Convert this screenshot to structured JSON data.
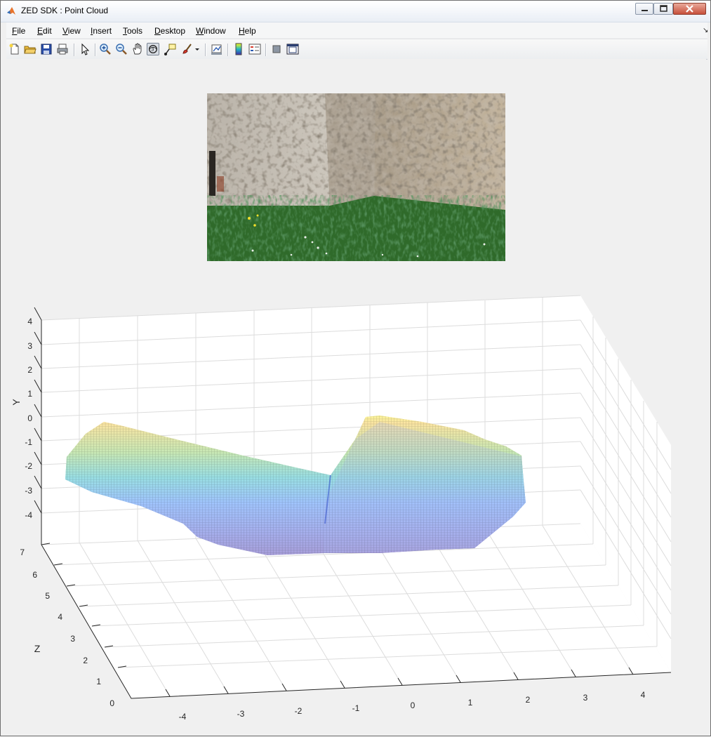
{
  "window": {
    "title": "ZED SDK : Point Cloud",
    "app_icon": "matlab-icon",
    "controls": [
      "minimize-icon",
      "maximize-icon",
      "close-icon"
    ]
  },
  "menubar": {
    "items": [
      {
        "key": "F",
        "rest": "ile"
      },
      {
        "key": "E",
        "rest": "dit"
      },
      {
        "key": "V",
        "rest": "iew"
      },
      {
        "key": "I",
        "rest": "nsert"
      },
      {
        "key": "T",
        "rest": "ools"
      },
      {
        "key": "D",
        "rest": "esktop"
      },
      {
        "key": "W",
        "rest": "indow"
      },
      {
        "key": "H",
        "rest": "elp"
      }
    ],
    "overflow_icon": "dock-arrow-icon"
  },
  "toolbar": {
    "tools": [
      "new-figure-icon",
      "open-file-icon",
      "save-icon",
      "print-icon",
      "edit-plot-icon",
      "zoom-in-icon",
      "zoom-out-icon",
      "pan-icon",
      "rotate-3d-icon",
      "data-cursor-icon",
      "brush-icon",
      "brush-dropdown-icon",
      "link-plot-icon",
      "insert-colorbar-icon",
      "insert-legend-icon",
      "hide-plot-tools-icon",
      "show-plot-tools-icon"
    ],
    "active_tool": "rotate-3d-icon"
  },
  "image": {
    "description_icon": "left-camera-image"
  },
  "axes": {
    "ylabel": "Y",
    "zlabel": "Z",
    "x_ticks": [
      "-4",
      "-3",
      "-2",
      "-1",
      "0",
      "1",
      "2",
      "3",
      "4"
    ],
    "y_ticks": [
      "4",
      "3",
      "2",
      "1",
      "0",
      "-1",
      "-2",
      "-3",
      "-4"
    ],
    "z_ticks": [
      "7",
      "6",
      "5",
      "4",
      "3",
      "2",
      "1",
      "0"
    ],
    "grid": true,
    "colormap": [
      "#3e26a8",
      "#2e7efb",
      "#1fb8c4",
      "#85cc5c",
      "#f9c932",
      "#f9fb15"
    ]
  }
}
